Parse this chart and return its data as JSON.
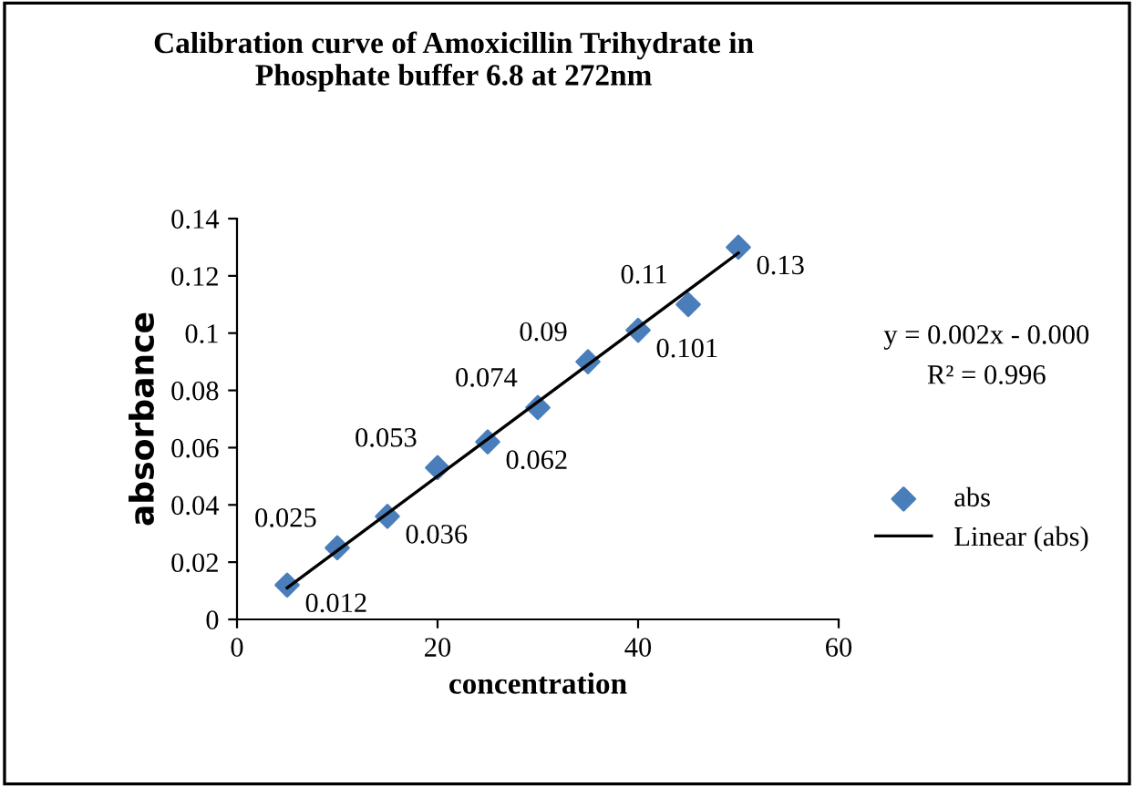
{
  "chart_data": {
    "type": "scatter",
    "title": "Calibration curve of Amoxicillin Trihydrate in\nPhosphate buffer 6.8 at 272nm",
    "xlabel": "concentration",
    "ylabel": "absorbance",
    "x": [
      5,
      10,
      15,
      20,
      25,
      30,
      35,
      40,
      45,
      50
    ],
    "series": [
      {
        "name": "abs",
        "color": "#4a7ebb",
        "marker": "diamond",
        "values": [
          0.012,
          0.025,
          0.036,
          0.053,
          0.062,
          0.074,
          0.09,
          0.101,
          0.11,
          0.13
        ],
        "value_labels": [
          "0.012",
          "0.025",
          "0.036",
          "0.053",
          "0.062",
          "0.074",
          "0.09",
          "0.101",
          "0.11",
          "0.13"
        ]
      },
      {
        "name": "Linear (abs)",
        "type": "line",
        "color": "#000000",
        "x": [
          5,
          50
        ],
        "values": [
          0.011,
          0.128
        ]
      }
    ],
    "annotations": [
      "y = 0.002x - 0.000",
      "R² = 0.996"
    ],
    "xlim": [
      0,
      60
    ],
    "xticks": [
      0,
      20,
      40,
      60
    ],
    "ylim": [
      0,
      0.14
    ],
    "yticks": [
      0,
      0.02,
      0.04,
      0.06,
      0.08,
      0.1,
      0.12,
      0.14
    ],
    "grid": false,
    "legend": "right"
  }
}
